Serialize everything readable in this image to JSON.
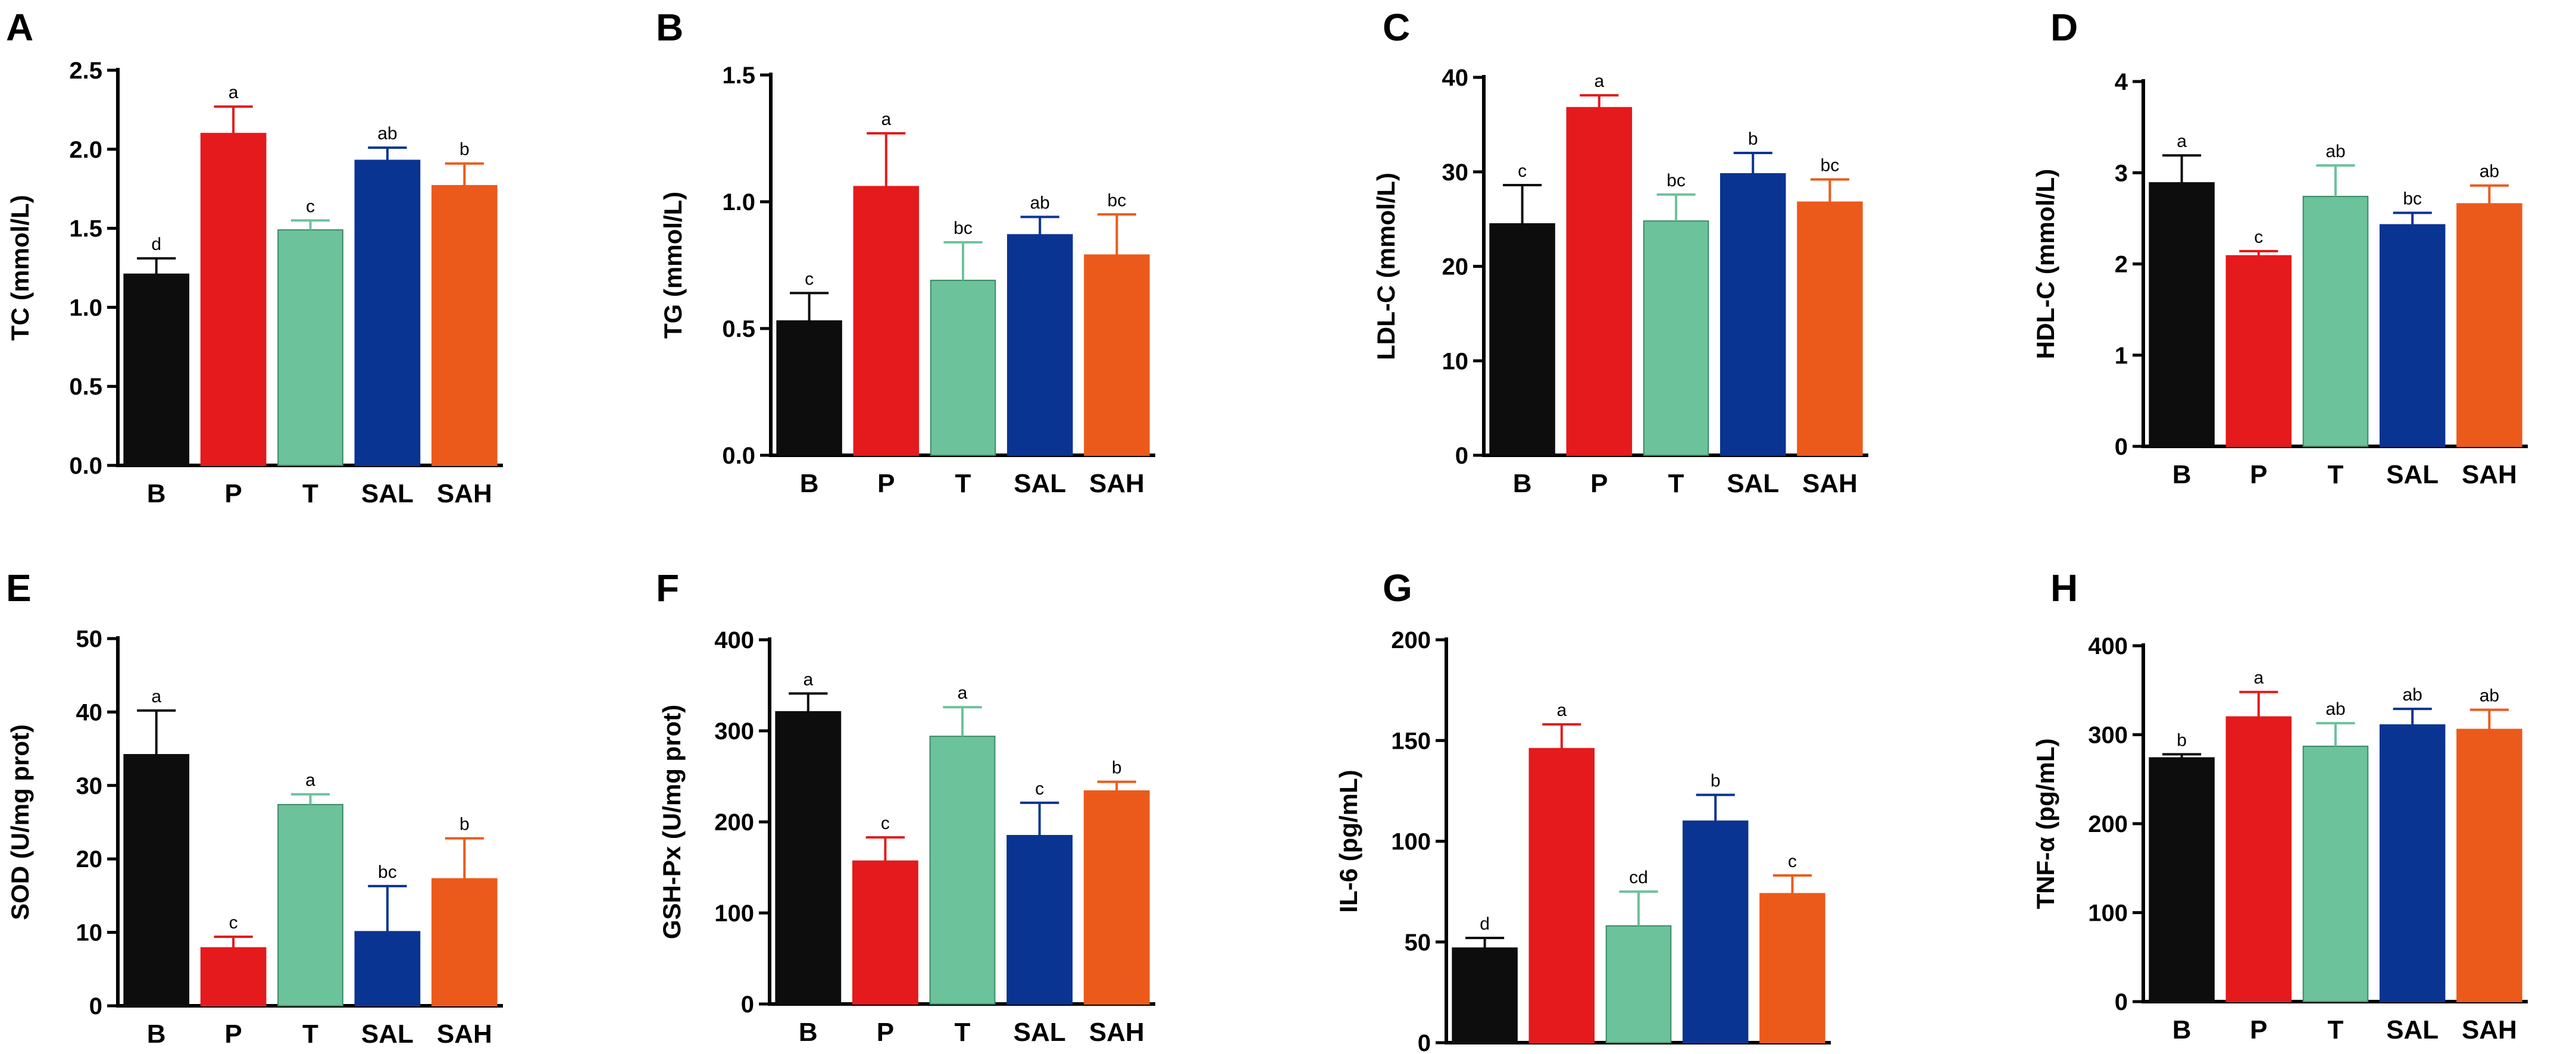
{
  "chart_data": [
    {
      "panel": "A",
      "type": "bar",
      "ylabel": "TC (mmol/L)",
      "categories": [
        "B",
        "P",
        "T",
        "SAL",
        "SAH"
      ],
      "values": [
        1.21,
        2.1,
        1.49,
        1.93,
        1.77
      ],
      "errors": [
        0.1,
        0.17,
        0.06,
        0.08,
        0.14
      ],
      "letters": [
        "d",
        "a",
        "c",
        "ab",
        "b"
      ],
      "ylim": [
        0,
        2.5
      ],
      "yticks": [
        "0.0",
        "0.5",
        "1.0",
        "1.5",
        "2.0",
        "2.5"
      ]
    },
    {
      "panel": "B",
      "type": "bar",
      "ylabel": "TG (mmol/L)",
      "categories": [
        "B",
        "P",
        "T",
        "SAL",
        "SAH"
      ],
      "values": [
        0.53,
        1.06,
        0.69,
        0.87,
        0.79
      ],
      "errors": [
        0.11,
        0.21,
        0.15,
        0.07,
        0.16
      ],
      "letters": [
        "c",
        "a",
        "bc",
        "ab",
        "bc"
      ],
      "ylim": [
        0,
        1.5
      ],
      "yticks": [
        "0.0",
        "0.5",
        "1.0",
        "1.5"
      ]
    },
    {
      "panel": "C",
      "type": "bar",
      "ylabel": "LDL-C (mmol/L)",
      "categories": [
        "B",
        "P",
        "T",
        "SAL",
        "SAH"
      ],
      "values": [
        24.5,
        36.8,
        24.8,
        29.8,
        26.8
      ],
      "errors": [
        4.1,
        1.3,
        2.8,
        2.2,
        2.4
      ],
      "letters": [
        "c",
        "a",
        "bc",
        "b",
        "bc"
      ],
      "ylim": [
        0,
        40
      ],
      "yticks": [
        "0",
        "10",
        "20",
        "30",
        "40"
      ]
    },
    {
      "panel": "D",
      "type": "bar",
      "ylabel": "HDL-C (mmol/L)",
      "categories": [
        "B",
        "P",
        "T",
        "SAL",
        "SAH"
      ],
      "values": [
        2.89,
        2.09,
        2.74,
        2.43,
        2.66
      ],
      "errors": [
        0.3,
        0.05,
        0.34,
        0.13,
        0.2
      ],
      "letters": [
        "a",
        "c",
        "ab",
        "bc",
        "ab"
      ],
      "ylim": [
        0,
        4
      ],
      "yticks": [
        "0",
        "1",
        "2",
        "3",
        "4"
      ]
    },
    {
      "panel": "E",
      "type": "bar",
      "ylabel": "SOD (U/mg prot)",
      "categories": [
        "B",
        "P",
        "T",
        "SAL",
        "SAH"
      ],
      "values": [
        34.2,
        7.9,
        27.4,
        10.1,
        17.3
      ],
      "errors": [
        6.0,
        1.5,
        1.4,
        6.2,
        5.5
      ],
      "letters": [
        "a",
        "c",
        "a",
        "bc",
        "b"
      ],
      "ylim": [
        0,
        50
      ],
      "yticks": [
        "0",
        "10",
        "20",
        "30",
        "40",
        "50"
      ]
    },
    {
      "panel": "F",
      "type": "bar",
      "ylabel": "GSH-Px (U/mg prot)",
      "categories": [
        "B",
        "P",
        "T",
        "SAL",
        "SAH"
      ],
      "values": [
        321,
        157,
        294,
        185,
        234
      ],
      "errors": [
        20,
        26,
        32,
        36,
        10
      ],
      "letters": [
        "a",
        "c",
        "a",
        "c",
        "b"
      ],
      "ylim": [
        0,
        400
      ],
      "yticks": [
        "0",
        "100",
        "200",
        "300",
        "400"
      ]
    },
    {
      "panel": "G",
      "type": "bar",
      "ylabel": "IL-6 (pg/mL)",
      "categories": [
        "B",
        "P",
        "T",
        "SAL",
        "SAH"
      ],
      "values": [
        47,
        146,
        58,
        110,
        74
      ],
      "errors": [
        5,
        12,
        17,
        13,
        9
      ],
      "letters": [
        "d",
        "a",
        "cd",
        "b",
        "c"
      ],
      "ylim": [
        0,
        200
      ],
      "yticks": [
        "0",
        "50",
        "100",
        "150",
        "200"
      ]
    },
    {
      "panel": "H",
      "type": "bar",
      "ylabel": "TNF-α (pg/mL)",
      "categories": [
        "B",
        "P",
        "T",
        "SAL",
        "SAH"
      ],
      "values": [
        274,
        320,
        287,
        311,
        306
      ],
      "errors": [
        4,
        28,
        26,
        18,
        22
      ],
      "letters": [
        "b",
        "a",
        "ab",
        "ab",
        "ab"
      ],
      "ylim": [
        0,
        400
      ],
      "yticks": [
        "0",
        "100",
        "200",
        "300",
        "400"
      ]
    }
  ],
  "series_colors": [
    "#0d0d0d",
    "#e41a1c",
    "#6cc29b",
    "#0a3491",
    "#ec5a1b"
  ]
}
